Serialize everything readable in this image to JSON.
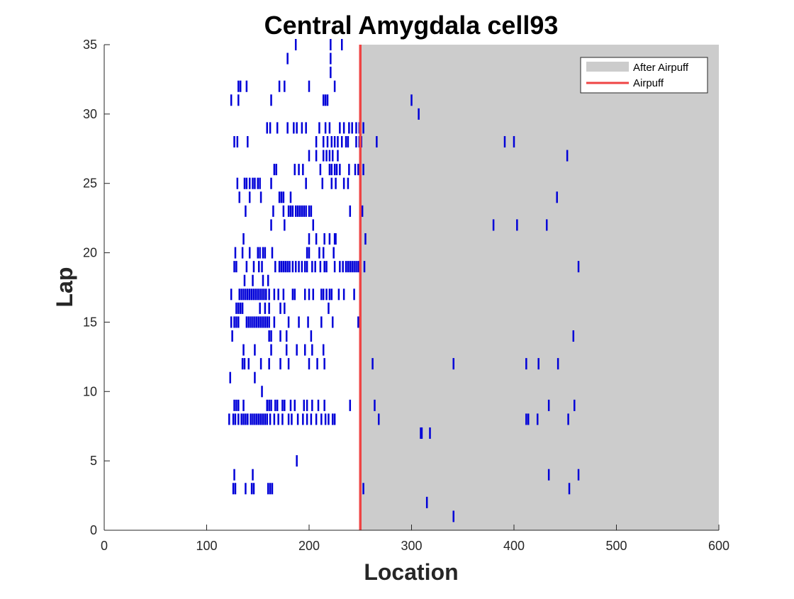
{
  "chart_data": {
    "type": "scatter",
    "mark": "vertical tick (spike raster)",
    "title": "Central Amygdala cell93",
    "xlabel": "Location",
    "ylabel": "Lap",
    "xlim": [
      0,
      600
    ],
    "ylim": [
      0,
      35
    ],
    "xticks": [
      0,
      100,
      200,
      300,
      400,
      500,
      600
    ],
    "yticks": [
      0,
      5,
      10,
      15,
      20,
      25,
      30,
      35
    ],
    "grid": false,
    "legend_position": "top-right",
    "legend": [
      {
        "label": "After Airpuff",
        "kind": "shaded-region"
      },
      {
        "label": "Airpuff",
        "kind": "line"
      }
    ],
    "shaded_region": {
      "name": "After Airpuff",
      "x_start": 250,
      "x_end": 600,
      "color": "#cccccc"
    },
    "airpuff_line": {
      "name": "Airpuff",
      "x": 250,
      "color": "#ef4444"
    },
    "spike_color": "#0000d8",
    "laps": [
      {
        "lap": 1,
        "x": [
          341
        ]
      },
      {
        "lap": 2,
        "x": [
          315
        ]
      },
      {
        "lap": 3,
        "x": [
          126,
          128,
          138,
          144,
          146,
          160,
          162,
          164,
          253,
          454
        ]
      },
      {
        "lap": 4,
        "x": [
          127,
          145,
          434,
          463
        ]
      },
      {
        "lap": 5,
        "x": [
          188
        ]
      },
      {
        "lap": 7,
        "x": [
          309,
          310,
          318
        ]
      },
      {
        "lap": 8,
        "x": [
          122,
          126,
          128,
          131,
          134,
          136,
          138,
          140,
          143,
          145,
          147,
          149,
          151,
          153,
          155,
          157,
          159,
          162,
          166,
          170,
          174,
          180,
          183,
          189,
          194,
          198,
          202,
          207,
          212,
          216,
          219,
          223,
          225,
          268,
          412,
          414,
          423,
          453
        ]
      },
      {
        "lap": 9,
        "x": [
          127,
          129,
          131,
          136,
          159,
          161,
          163,
          167,
          169,
          174,
          176,
          182,
          186,
          195,
          198,
          203,
          209,
          215,
          240,
          264,
          434,
          459
        ]
      },
      {
        "lap": 10,
        "x": [
          154
        ]
      },
      {
        "lap": 11,
        "x": [
          123,
          147
        ]
      },
      {
        "lap": 12,
        "x": [
          135,
          137,
          141,
          153,
          161,
          172,
          180,
          200,
          208,
          215,
          262,
          341,
          412,
          424,
          443
        ]
      },
      {
        "lap": 13,
        "x": [
          136,
          147,
          163,
          178,
          188,
          196,
          203,
          214
        ]
      },
      {
        "lap": 14,
        "x": [
          125,
          161,
          163,
          172,
          178,
          202,
          458
        ]
      },
      {
        "lap": 15,
        "x": [
          124,
          127,
          129,
          131,
          139,
          141,
          143,
          145,
          147,
          149,
          151,
          153,
          155,
          157,
          159,
          161,
          166,
          180,
          190,
          199,
          212,
          223,
          248
        ]
      },
      {
        "lap": 16,
        "x": [
          129,
          131,
          133,
          135,
          152,
          157,
          161,
          172,
          176,
          219
        ]
      },
      {
        "lap": 17,
        "x": [
          124,
          132,
          134,
          136,
          138,
          140,
          142,
          144,
          146,
          148,
          150,
          152,
          154,
          156,
          158,
          161,
          166,
          170,
          175,
          184,
          186,
          196,
          200,
          204,
          212,
          214,
          217,
          220,
          222,
          229,
          234,
          244
        ]
      },
      {
        "lap": 18,
        "x": [
          137,
          145,
          155,
          160
        ]
      },
      {
        "lap": 19,
        "x": [
          127,
          129,
          139,
          146,
          151,
          154,
          167,
          171,
          173,
          175,
          177,
          179,
          181,
          184,
          187,
          190,
          193,
          196,
          198,
          203,
          206,
          211,
          215,
          217,
          225,
          230,
          233,
          236,
          238,
          240,
          242,
          244,
          246,
          248,
          254,
          463
        ]
      },
      {
        "lap": 20,
        "x": [
          128,
          135,
          142,
          150,
          152,
          155,
          157,
          164,
          198,
          200,
          210,
          214,
          224
        ]
      },
      {
        "lap": 21,
        "x": [
          136,
          200,
          207,
          215,
          220,
          225,
          226,
          255
        ]
      },
      {
        "lap": 22,
        "x": [
          163,
          176,
          204,
          380,
          403,
          432
        ]
      },
      {
        "lap": 23,
        "x": [
          138,
          165,
          175,
          180,
          182,
          184,
          187,
          189,
          191,
          193,
          195,
          197,
          200,
          202,
          240,
          252
        ]
      },
      {
        "lap": 24,
        "x": [
          132,
          142,
          153,
          171,
          173,
          175,
          182,
          442
        ]
      },
      {
        "lap": 25,
        "x": [
          130,
          137,
          139,
          142,
          145,
          147,
          150,
          152,
          163,
          197,
          213,
          222,
          226,
          234,
          238
        ]
      },
      {
        "lap": 26,
        "x": [
          166,
          168,
          186,
          190,
          194,
          211,
          220,
          222,
          225,
          227,
          230,
          239,
          245,
          248,
          250,
          253
        ]
      },
      {
        "lap": 27,
        "x": [
          200,
          207,
          214,
          217,
          220,
          223,
          228,
          250,
          452
        ]
      },
      {
        "lap": 28,
        "x": [
          127,
          130,
          140,
          207,
          214,
          218,
          222,
          225,
          228,
          232,
          236,
          238,
          246,
          249,
          251,
          266,
          391,
          400
        ]
      },
      {
        "lap": 29,
        "x": [
          159,
          162,
          169,
          179,
          185,
          188,
          193,
          197,
          210,
          216,
          220,
          230,
          234,
          239,
          242,
          246,
          249,
          253
        ]
      },
      {
        "lap": 30,
        "x": [
          307
        ]
      },
      {
        "lap": 31,
        "x": [
          124,
          131,
          163,
          214,
          216,
          218,
          300
        ]
      },
      {
        "lap": 32,
        "x": [
          131,
          133,
          139,
          171,
          176,
          200,
          225
        ]
      },
      {
        "lap": 33,
        "x": [
          221
        ]
      },
      {
        "lap": 34,
        "x": [
          179,
          221
        ]
      },
      {
        "lap": 35,
        "x": [
          187,
          221,
          232
        ]
      }
    ]
  }
}
